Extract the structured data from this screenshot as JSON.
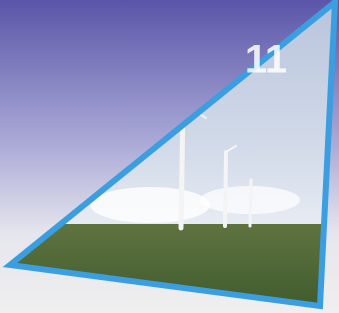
{
  "badge": {
    "number": "11"
  }
}
